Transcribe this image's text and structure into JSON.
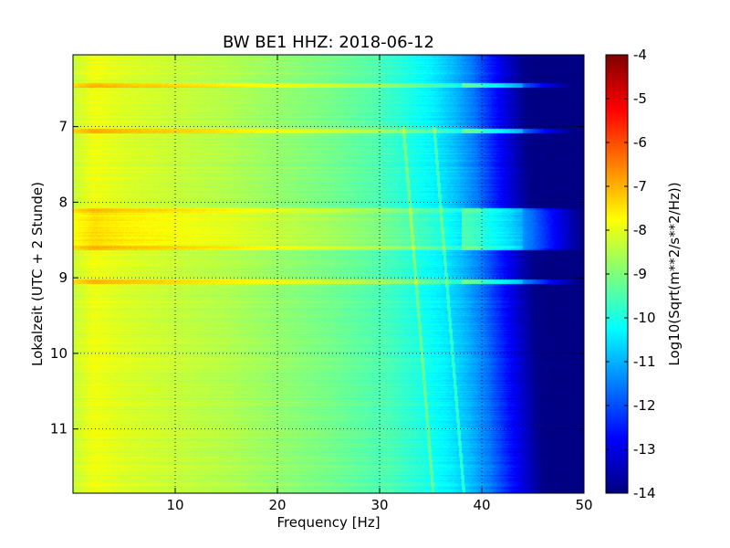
{
  "chart_data": {
    "type": "heatmap",
    "title": "BW BE1 HHZ: 2018-06-12",
    "xlabel": "Frequency [Hz]",
    "ylabel": "Lokalzeit (UTC + 2 Stunde)",
    "xlim": [
      0,
      50
    ],
    "ylim": [
      6.05,
      11.85
    ],
    "y_inverted": true,
    "x_ticks": [
      10,
      20,
      30,
      40,
      50
    ],
    "x_tick_labels": [
      "10",
      "20",
      "30",
      "40",
      "50"
    ],
    "y_ticks": [
      7,
      8,
      9,
      10,
      11
    ],
    "y_tick_labels": [
      "7",
      "8",
      "9",
      "10",
      "11"
    ],
    "grid": true,
    "colormap": "jet",
    "colorbar": {
      "label": "Log10(Sqrt(m**2/s**2/Hz))",
      "min": -14,
      "max": -4,
      "ticks": [
        -4,
        -5,
        -6,
        -7,
        -8,
        -9,
        -10,
        -11,
        -12,
        -13,
        -14
      ],
      "tick_labels": [
        "-4",
        "-5",
        "-6",
        "-7",
        "-8",
        "-9",
        "-10",
        "-11",
        "-12",
        "-13",
        "-14"
      ]
    },
    "spectrum_profile": {
      "frequency_hz": [
        0,
        2,
        5,
        10,
        15,
        20,
        25,
        30,
        33,
        36,
        38,
        40,
        42,
        44,
        45,
        47,
        50
      ],
      "log10_amplitude": [
        -8.3,
        -7.9,
        -8.1,
        -8.3,
        -8.5,
        -8.8,
        -9.1,
        -9.5,
        -9.9,
        -10.4,
        -10.9,
        -11.6,
        -12.6,
        -13.5,
        -13.9,
        -14,
        -14
      ]
    },
    "broadband_bands_hours": [
      6.45,
      7.05,
      8.1,
      8.6,
      9.05
    ],
    "tonal_lines_hz": [
      33.5,
      36.5
    ]
  }
}
